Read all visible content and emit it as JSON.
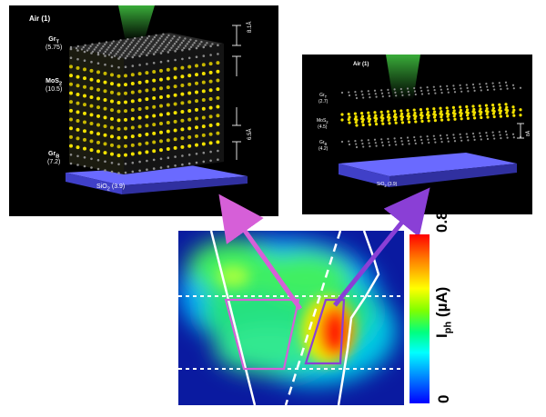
{
  "left_panel": {
    "air": "Air (1)",
    "gr_top_name": "Gr",
    "gr_top_sub": "T",
    "gr_top_val": "(5.75)",
    "mos2_name": "MoS",
    "mos2_sub": "2",
    "mos2_val": "(10.5)",
    "gr_bot_name": "Gr",
    "gr_bot_sub": "B",
    "gr_bot_val": "(7.2)",
    "sio2": "SiO",
    "sio2_sub": "2",
    "sio2_val": "(3.9)",
    "dim_top": "8.1Å",
    "dim_bot": "6.5Å"
  },
  "right_panel": {
    "air": "Air (1)",
    "gr_top_name": "Gr",
    "gr_top_sub": "T",
    "gr_top_val": "(2.7)",
    "mos2_name": "MoS",
    "mos2_sub": "2",
    "mos2_val": "(4.5)",
    "gr_bot_name": "Gr",
    "gr_bot_sub": "B",
    "gr_bot_val": "(4.2)",
    "sio2": "SiO",
    "sio2_sub": "2",
    "sio2_val": "(3.9)",
    "dim": "8Å"
  },
  "colorbar": {
    "max": "0.8",
    "min": "0",
    "label_main": "I",
    "label_sub": "ph",
    "label_unit": " (µA)"
  },
  "colors": {
    "arrow_left": "#d65fd8",
    "arrow_right": "#8a3fd6",
    "sulfur": "#f2e100",
    "atom_gray": "#8c8c8c",
    "substrate": "#6a6aff"
  }
}
